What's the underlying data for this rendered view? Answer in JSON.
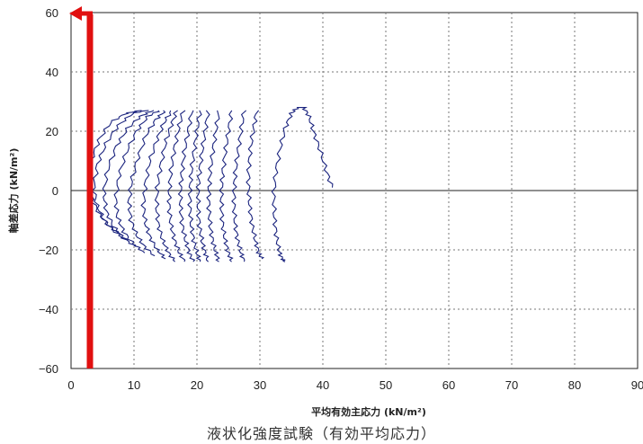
{
  "chart_data": {
    "type": "line",
    "xlabel": "平均有効主応力 (kN/m²)",
    "ylabel": "軸差応力 (kN/m²)",
    "caption": "液状化強度試験（有効平均応力）",
    "xlim": [
      0,
      90
    ],
    "ylim": [
      -60,
      60
    ],
    "x_ticks": [
      "0",
      "10",
      "20",
      "30",
      "40",
      "50",
      "60",
      "70",
      "80",
      "90"
    ],
    "y_ticks": [
      "60",
      "40",
      "20",
      "0",
      "-20",
      "-40",
      "-60"
    ],
    "grid": true,
    "colors": {
      "stress_path": "#1a237e",
      "marker": "#e11010"
    },
    "marker_x": 3,
    "series": [
      {
        "x": [
          41.5,
          40.5,
          39.5,
          38.5,
          37.8,
          37.0,
          36.0,
          35.0,
          34.0,
          33.2,
          32.5,
          32.2,
          32.3,
          32.6,
          33.0,
          33.5,
          34.0
        ],
        "y": [
          1,
          7,
          14,
          20,
          25,
          28,
          28,
          26,
          21,
          14,
          6,
          -2,
          -9,
          -15,
          -20,
          -23,
          -24
        ]
      },
      {
        "x": [
          29.5,
          29.0,
          28.5,
          28.2,
          28.2,
          28.4,
          28.8,
          29.3,
          29.8,
          30.3
        ],
        "y": [
          27,
          21,
          14,
          7,
          0,
          -6,
          -12,
          -17,
          -21,
          -23
        ]
      },
      {
        "x": [
          27.5,
          27.0,
          26.5,
          26.1,
          25.9,
          25.9,
          26.1,
          26.5,
          27.0,
          27.5
        ],
        "y": [
          27,
          20,
          13,
          6,
          0,
          -6,
          -12,
          -17,
          -21,
          -24
        ]
      },
      {
        "x": [
          25.5,
          25.0,
          24.5,
          24.1,
          23.9,
          23.9,
          24.1,
          24.5,
          25.0,
          25.5
        ],
        "y": [
          27,
          20,
          13,
          6,
          0,
          -6,
          -12,
          -17,
          -21,
          -24
        ]
      },
      {
        "x": [
          23.5,
          23.0,
          22.5,
          22.1,
          21.9,
          21.9,
          22.1,
          22.5,
          23.0,
          23.5
        ],
        "y": [
          27,
          20,
          13,
          6,
          0,
          -6,
          -12,
          -17,
          -21,
          -24
        ]
      },
      {
        "x": [
          21.8,
          21.3,
          20.8,
          20.4,
          20.2,
          20.2,
          20.4,
          20.8,
          21.3,
          21.8
        ],
        "y": [
          27,
          20,
          13,
          6,
          0,
          -6,
          -12,
          -17,
          -21,
          -24
        ]
      },
      {
        "x": [
          20.5,
          20.0,
          19.5,
          19.1,
          18.9,
          18.9,
          19.1,
          19.5,
          20.0,
          20.5
        ],
        "y": [
          27,
          20,
          13,
          6,
          0,
          -6,
          -12,
          -17,
          -21,
          -24
        ]
      },
      {
        "x": [
          19.2,
          18.6,
          18.0,
          17.6,
          17.4,
          17.4,
          17.7,
          18.2,
          18.8,
          19.4
        ],
        "y": [
          27,
          20,
          13,
          6,
          0,
          -6,
          -12,
          -17,
          -21,
          -24
        ]
      },
      {
        "x": [
          17.8,
          17.1,
          16.4,
          15.9,
          15.6,
          15.6,
          15.9,
          16.5,
          17.2,
          18.0
        ],
        "y": [
          27,
          21,
          14,
          7,
          0,
          -6,
          -12,
          -17,
          -21,
          -24
        ]
      },
      {
        "x": [
          16.8,
          15.9,
          15.0,
          14.2,
          13.7,
          13.6,
          13.9,
          14.6,
          15.5,
          16.5
        ],
        "y": [
          27,
          22,
          16,
          8,
          1,
          -6,
          -12,
          -17,
          -21,
          -24
        ]
      },
      {
        "x": [
          16.0,
          14.8,
          13.6,
          12.5,
          11.8,
          11.5,
          11.8,
          12.6,
          13.7,
          15.0
        ],
        "y": [
          27,
          23,
          17,
          10,
          2,
          -5,
          -11,
          -16,
          -20,
          -23
        ]
      },
      {
        "x": [
          15.0,
          13.5,
          12.0,
          10.6,
          9.6,
          9.2,
          9.5,
          10.4,
          11.7,
          13.3
        ],
        "y": [
          27,
          24,
          19,
          11,
          3,
          -4,
          -10,
          -15,
          -19,
          -22
        ]
      },
      {
        "x": [
          14.0,
          12.2,
          10.4,
          8.8,
          7.6,
          7.1,
          7.4,
          8.4,
          9.9,
          11.7
        ],
        "y": [
          27,
          25,
          20,
          13,
          5,
          -3,
          -9,
          -14,
          -18,
          -21
        ]
      },
      {
        "x": [
          13.0,
          11.0,
          9.0,
          7.2,
          5.8,
          5.2,
          5.6,
          6.7,
          8.3,
          10.3
        ],
        "y": [
          27,
          25,
          21,
          15,
          7,
          -1,
          -7,
          -12,
          -16,
          -19
        ]
      },
      {
        "x": [
          12.0,
          9.8,
          7.5,
          5.6,
          4.2,
          3.6,
          4.1,
          5.3,
          7.0,
          9.0
        ],
        "y": [
          27,
          26,
          22,
          16,
          9,
          1,
          -5,
          -10,
          -14,
          -17
        ]
      },
      {
        "x": [
          11.0,
          8.7,
          6.3,
          4.4,
          3.2,
          2.9,
          3.4,
          4.5,
          6.0,
          8.0
        ],
        "y": [
          27,
          26,
          23,
          17,
          10,
          3,
          -3,
          -8,
          -12,
          -15
        ]
      }
    ]
  }
}
